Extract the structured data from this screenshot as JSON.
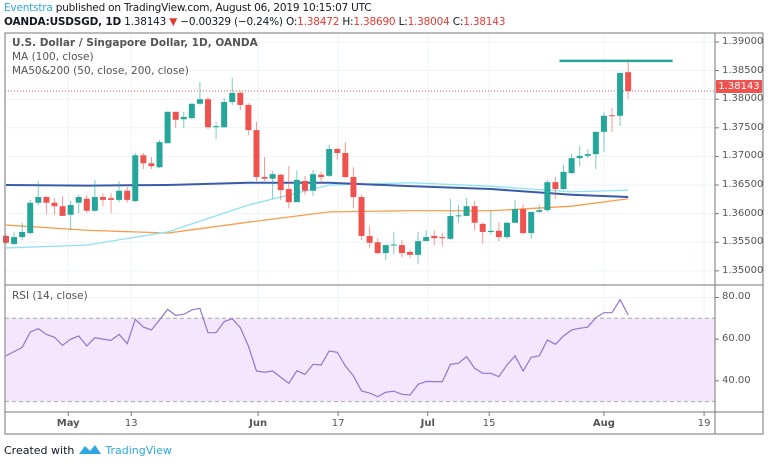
{
  "header": {
    "author": "Eventstra",
    "published": "published on TradingView.com, August 06, 2019 10:15:07 UTC",
    "symbol": "OANDA:USDSGD, 1D",
    "last": "1.38143",
    "change": "−0.00329 (−0.24%)",
    "o_label": "O:",
    "o": "1.38472",
    "h_label": "H:",
    "h": "1.38690",
    "l_label": "L:",
    "l": "1.38004",
    "c_label": "C:",
    "c": "1.38143"
  },
  "legend": {
    "title": "U.S. Dollar / Singapore Dollar, 1D, OANDA",
    "ma100": "MA (100, close)",
    "ma50_200": "MA50&200 (50, close, 200, close)",
    "rsi": "RSI (14, close)"
  },
  "footer": {
    "created": "Created with",
    "brand": "TradingView"
  },
  "colors": {
    "up": "#26a69a",
    "down": "#ef5350",
    "ma100": "#3a5baa",
    "ma50": "#8fe1f4",
    "ma200": "#f99d4d",
    "rsi": "#9575cd",
    "rsi_band": "#f3e6fd",
    "resistance": "#26a69a"
  },
  "chart_data": [
    {
      "type": "candlestick",
      "title": "U.S. Dollar / Singapore Dollar, 1D, OANDA",
      "ylim": [
        1.348,
        1.3905
      ],
      "yticks": [
        "1.39000",
        "1.38500",
        "1.38000",
        "1.37500",
        "1.37000",
        "1.36500",
        "1.36000",
        "1.35500",
        "1.35000"
      ],
      "last_price": "1.38143",
      "xticks": [
        {
          "label": "May",
          "bar_index": 7.7,
          "bold": true
        },
        {
          "label": "13",
          "bar_index": 15.5
        },
        {
          "label": "Jun",
          "bar_index": 31.2,
          "bold": true
        },
        {
          "label": "17",
          "bar_index": 41.1
        },
        {
          "label": "Jul",
          "bar_index": 52.2,
          "bold": true
        },
        {
          "label": "15",
          "bar_index": 59.8
        },
        {
          "label": "Aug",
          "bar_index": 74,
          "bold": true
        },
        {
          "label": "19",
          "bar_index": 86.4
        }
      ],
      "ohlc": [
        [
          1.3561,
          1.3563,
          1.3547,
          1.3549
        ],
        [
          1.3547,
          1.3568,
          1.3545,
          1.3559
        ],
        [
          1.3559,
          1.3584,
          1.3554,
          1.3568
        ],
        [
          1.3566,
          1.3624,
          1.3564,
          1.3619
        ],
        [
          1.3619,
          1.3657,
          1.3615,
          1.3629
        ],
        [
          1.3629,
          1.3631,
          1.3599,
          1.3619
        ],
        [
          1.3619,
          1.3627,
          1.3599,
          1.3613
        ],
        [
          1.3613,
          1.3631,
          1.3596,
          1.3596
        ],
        [
          1.3598,
          1.3622,
          1.3571,
          1.3615
        ],
        [
          1.3619,
          1.3633,
          1.3601,
          1.3629
        ],
        [
          1.3626,
          1.3633,
          1.3601,
          1.3605
        ],
        [
          1.3605,
          1.3659,
          1.3603,
          1.3629
        ],
        [
          1.3629,
          1.3636,
          1.3613,
          1.3624
        ],
        [
          1.3627,
          1.3636,
          1.3601,
          1.3624
        ],
        [
          1.3624,
          1.3657,
          1.362,
          1.364
        ],
        [
          1.364,
          1.3647,
          1.3619,
          1.3624
        ],
        [
          1.3622,
          1.3706,
          1.362,
          1.3702
        ],
        [
          1.3702,
          1.3706,
          1.3678,
          1.3688
        ],
        [
          1.3688,
          1.3699,
          1.3678,
          1.3683
        ],
        [
          1.3681,
          1.3729,
          1.368,
          1.3725
        ],
        [
          1.3723,
          1.3778,
          1.3723,
          1.3778
        ],
        [
          1.3778,
          1.3778,
          1.375,
          1.3764
        ],
        [
          1.3765,
          1.3778,
          1.375,
          1.3769
        ],
        [
          1.3767,
          1.3793,
          1.3765,
          1.3792
        ],
        [
          1.3792,
          1.383,
          1.379,
          1.38
        ],
        [
          1.38,
          1.3804,
          1.3748,
          1.3751
        ],
        [
          1.3751,
          1.376,
          1.373,
          1.3753
        ],
        [
          1.3751,
          1.3802,
          1.375,
          1.3795
        ],
        [
          1.3795,
          1.3837,
          1.379,
          1.3811
        ],
        [
          1.3811,
          1.3814,
          1.3781,
          1.379
        ],
        [
          1.379,
          1.3793,
          1.3737,
          1.3746
        ],
        [
          1.3746,
          1.376,
          1.3657,
          1.3664
        ],
        [
          1.3664,
          1.3699,
          1.3657,
          1.3661
        ],
        [
          1.3661,
          1.3675,
          1.3626,
          1.3669
        ],
        [
          1.3668,
          1.3669,
          1.3624,
          1.3641
        ],
        [
          1.3643,
          1.3683,
          1.361,
          1.362
        ],
        [
          1.362,
          1.3676,
          1.362,
          1.3659
        ],
        [
          1.3657,
          1.3666,
          1.3633,
          1.364
        ],
        [
          1.364,
          1.3676,
          1.3631,
          1.3669
        ],
        [
          1.3668,
          1.3673,
          1.3652,
          1.3664
        ],
        [
          1.3666,
          1.372,
          1.3664,
          1.3713
        ],
        [
          1.3713,
          1.3715,
          1.3694,
          1.3706
        ],
        [
          1.3706,
          1.3725,
          1.3662,
          1.3664
        ],
        [
          1.3664,
          1.3681,
          1.361,
          1.3629
        ],
        [
          1.3629,
          1.3633,
          1.3554,
          1.3561
        ],
        [
          1.3561,
          1.3578,
          1.354,
          1.3549
        ],
        [
          1.355,
          1.3557,
          1.3529,
          1.3531
        ],
        [
          1.3531,
          1.3545,
          1.3519,
          1.3545
        ],
        [
          1.3545,
          1.3568,
          1.3529,
          1.3546
        ],
        [
          1.3545,
          1.3554,
          1.3524,
          1.3531
        ],
        [
          1.3533,
          1.3536,
          1.3522,
          1.3528
        ],
        [
          1.3528,
          1.3568,
          1.3512,
          1.3552
        ],
        [
          1.3552,
          1.3571,
          1.3552,
          1.3559
        ],
        [
          1.3561,
          1.3571,
          1.3545,
          1.3557
        ],
        [
          1.3559,
          1.3566,
          1.3543,
          1.3557
        ],
        [
          1.3556,
          1.3626,
          1.3554,
          1.3596
        ],
        [
          1.3596,
          1.3615,
          1.3584,
          1.3597
        ],
        [
          1.3596,
          1.3627,
          1.3596,
          1.3613
        ],
        [
          1.3613,
          1.3622,
          1.3571,
          1.3584
        ],
        [
          1.3582,
          1.3585,
          1.3547,
          1.3568
        ],
        [
          1.3568,
          1.3605,
          1.3564,
          1.357
        ],
        [
          1.357,
          1.3585,
          1.3552,
          1.3559
        ],
        [
          1.3559,
          1.3585,
          1.3556,
          1.3584
        ],
        [
          1.3584,
          1.3624,
          1.3584,
          1.3608
        ],
        [
          1.3608,
          1.3617,
          1.3564,
          1.3566
        ],
        [
          1.3566,
          1.3603,
          1.3556,
          1.3603
        ],
        [
          1.3603,
          1.3615,
          1.3601,
          1.3606
        ],
        [
          1.3606,
          1.3659,
          1.3603,
          1.3655
        ],
        [
          1.3655,
          1.3664,
          1.3626,
          1.3643
        ],
        [
          1.3643,
          1.3685,
          1.3641,
          1.3673
        ],
        [
          1.3671,
          1.3704,
          1.3669,
          1.3697
        ],
        [
          1.3697,
          1.3718,
          1.3683,
          1.3701
        ],
        [
          1.3701,
          1.3713,
          1.3697,
          1.3704
        ],
        [
          1.3704,
          1.3743,
          1.3678,
          1.3743
        ],
        [
          1.3743,
          1.3778,
          1.3708,
          1.3771
        ],
        [
          1.3772,
          1.3785,
          1.3743,
          1.3771
        ],
        [
          1.3771,
          1.3846,
          1.3753,
          1.3846
        ],
        [
          1.38472,
          1.3869,
          1.38004,
          1.38143
        ]
      ],
      "ma100": {
        "bar_index": [
          0,
          10,
          20,
          30,
          40,
          50,
          60,
          70,
          77
        ],
        "values": [
          1.365,
          1.3649,
          1.365,
          1.3654,
          1.3654,
          1.3648,
          1.3643,
          1.3633,
          1.3629
        ]
      },
      "ma50": {
        "bar_index": [
          0,
          10,
          20,
          30,
          40,
          50,
          60,
          70,
          77
        ],
        "values": [
          1.354,
          1.3545,
          1.3568,
          1.3615,
          1.365,
          1.3654,
          1.3648,
          1.3638,
          1.3641
        ]
      },
      "ma200": {
        "bar_index": [
          0,
          10,
          20,
          30,
          40,
          50,
          60,
          70,
          77
        ],
        "values": [
          1.358,
          1.3571,
          1.3566,
          1.3585,
          1.3603,
          1.3605,
          1.3605,
          1.3613,
          1.3626
        ]
      },
      "resistance": {
        "from_bar": 68.5,
        "to_bar": 82.5,
        "price": 1.3867
      }
    },
    {
      "type": "line",
      "title": "RSI (14, close)",
      "ylim": [
        27,
        84
      ],
      "yticks": [
        "80.00",
        "60.00",
        "40.00"
      ],
      "band": [
        30,
        70
      ],
      "values": [
        52,
        54,
        56,
        63.4,
        65,
        62.3,
        60.9,
        57,
        60,
        61.5,
        56.7,
        60.7,
        60,
        59.4,
        62.3,
        57.8,
        69.5,
        65.8,
        64.4,
        69.2,
        74.3,
        71.4,
        71.9,
        74,
        74.8,
        63.1,
        63.1,
        68.4,
        69.8,
        65.5,
        56.7,
        44.7,
        44.1,
        44.7,
        41.7,
        38.8,
        44.8,
        43.1,
        47.9,
        47.6,
        54.3,
        53.7,
        47.1,
        42.4,
        35.1,
        34.1,
        32.4,
        34.5,
        35,
        33.5,
        33.2,
        38.3,
        39.7,
        39.6,
        39.6,
        47.9,
        48.4,
        51.6,
        46,
        43.6,
        43.6,
        42,
        47.6,
        52,
        44.7,
        51.3,
        52,
        59.6,
        57.5,
        61.5,
        64.4,
        65.2,
        65.8,
        70.3,
        72.7,
        72.7,
        78.9,
        71.6
      ]
    }
  ]
}
